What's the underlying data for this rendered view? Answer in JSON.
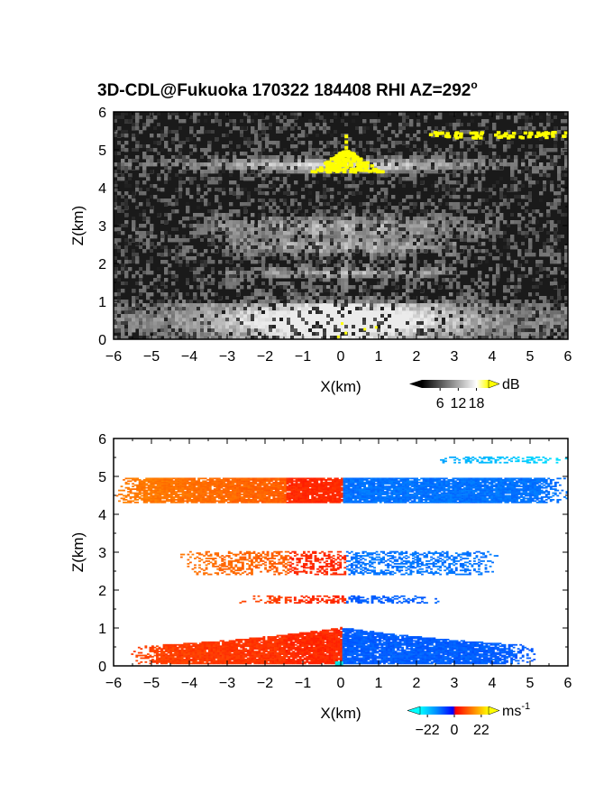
{
  "title_main": "3D-CDL@Fukuoka 170322 184408 RHI AZ=292",
  "title_sup": "o",
  "chart_data": [
    {
      "type": "heatmap",
      "name": "backscatter-intensity",
      "xlabel": "X(km)",
      "ylabel": "Z(km)",
      "xlim": [
        -6,
        6
      ],
      "ylim": [
        0,
        6
      ],
      "x_ticks": [
        "-6",
        "-5",
        "-4",
        "-3",
        "-2",
        "-1",
        "0",
        "1",
        "2",
        "3",
        "4",
        "5",
        "6"
      ],
      "y_ticks": [
        "0",
        "1",
        "2",
        "3",
        "4",
        "5",
        "6"
      ],
      "colorbar": {
        "unit": "dB",
        "tick_labels": [
          "6",
          "12",
          "18"
        ],
        "ticks": [
          6,
          12,
          18
        ],
        "range": [
          0,
          22
        ],
        "colors": [
          "#000000",
          "#ffffff",
          "#ffff00"
        ]
      },
      "layers": [
        {
          "z_center": 4.6,
          "z_width": 0.18,
          "x_range": [
            -6,
            6
          ],
          "level": "bright"
        },
        {
          "z_center": 2.95,
          "z_width": 0.3,
          "x_range": [
            -4,
            4
          ],
          "level": "medium"
        },
        {
          "z_center": 2.45,
          "z_width": 0.2,
          "x_range": [
            -3,
            3
          ],
          "level": "medium"
        },
        {
          "z_center": 1.75,
          "z_width": 0.12,
          "x_range": [
            -3,
            3
          ],
          "level": "medium"
        },
        {
          "z_center": 0.5,
          "z_width": 0.45,
          "x_range": [
            -6,
            6
          ],
          "level": "bright"
        }
      ],
      "saturated_regions": [
        {
          "x_range": [
            -0.8,
            1.0
          ],
          "z_range": [
            4.45,
            5.0
          ],
          "value": ">18 dB"
        },
        {
          "x_range": [
            2.2,
            5.9
          ],
          "z_range": [
            5.35,
            5.5
          ],
          "value": ">18 dB"
        }
      ]
    },
    {
      "type": "heatmap",
      "name": "radial-velocity",
      "xlabel": "X(km)",
      "ylabel": "Z(km)",
      "xlim": [
        -6,
        6
      ],
      "ylim": [
        0,
        6
      ],
      "x_ticks": [
        "-6",
        "-5",
        "-4",
        "-3",
        "-2",
        "-1",
        "0",
        "1",
        "2",
        "3",
        "4",
        "5",
        "6"
      ],
      "y_ticks": [
        "0",
        "1",
        "2",
        "3",
        "4",
        "5",
        "6"
      ],
      "colorbar": {
        "unit": "ms",
        "unit_sup": "-1",
        "tick_labels": [
          "−22",
          "0",
          "22"
        ],
        "ticks": [
          -22,
          0,
          22
        ],
        "range": [
          -28,
          28
        ],
        "colors": [
          "#00ffff",
          "#0088ff",
          "#0000ff",
          "#ff0000",
          "#ff8800",
          "#ffff00"
        ]
      },
      "layers": [
        {
          "z_range": [
            4.3,
            4.95
          ],
          "x_range": [
            -6,
            6
          ],
          "sign_change_x": 0.05,
          "v_left": 14,
          "v_right": -12
        },
        {
          "z_range": [
            5.35,
            5.5
          ],
          "x_range": [
            2.2,
            6
          ],
          "v_left": -17,
          "v_right": -24
        },
        {
          "z_range": [
            2.4,
            3.0
          ],
          "x_range": [
            -4.3,
            4.3
          ],
          "sign_change_x": 0.1,
          "v_left": 14,
          "v_right": -12
        },
        {
          "z_range": [
            1.65,
            1.85
          ],
          "x_range": [
            -2.8,
            2.6
          ],
          "sign_change_x": 0.1,
          "v_left": 10,
          "v_right": -10
        },
        {
          "z_range": [
            0.05,
            1.0
          ],
          "x_range": [
            -5.6,
            5.1
          ],
          "sign_change_x": 0.0,
          "v_left": 8,
          "v_right": -10
        }
      ]
    }
  ]
}
